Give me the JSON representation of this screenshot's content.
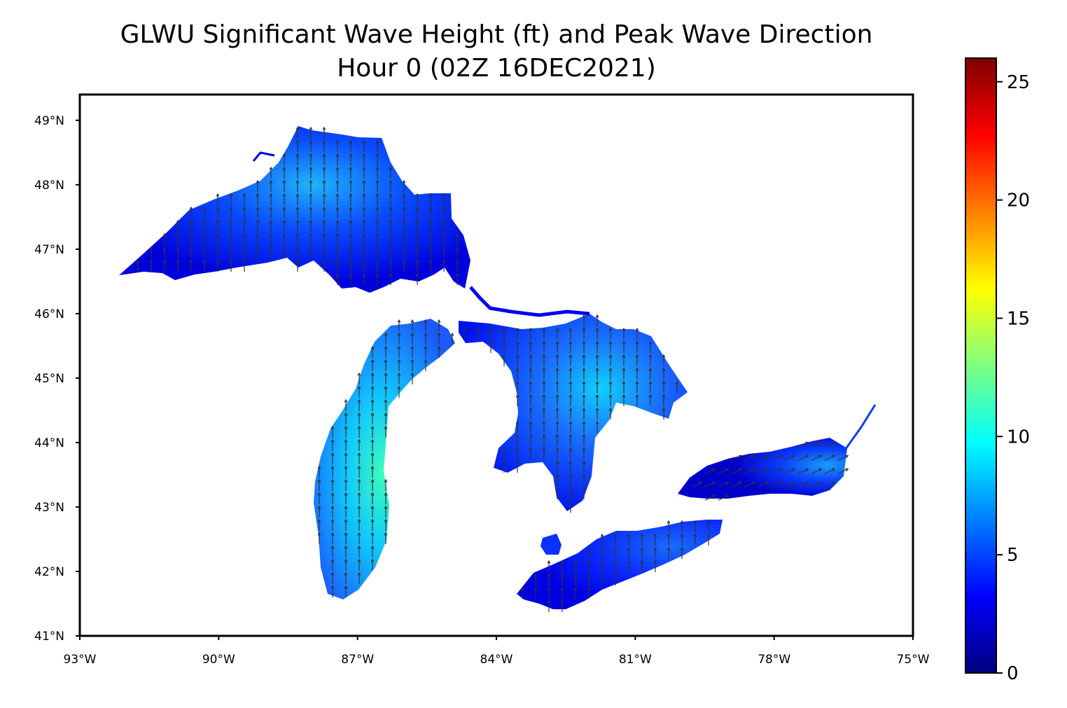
{
  "title": {
    "line1": "GLWU Significant Wave Height (ft) and Peak Wave Direction",
    "line2": "Hour 0 (02Z 16DEC2021)"
  },
  "chart_data": {
    "type": "heatmap",
    "projection": "PlateCarree",
    "xlim": [
      -93,
      -75
    ],
    "ylim": [
      41,
      49.4
    ],
    "x_ticks": [
      {
        "value": -93,
        "label": "93°W"
      },
      {
        "value": -90,
        "label": "90°W"
      },
      {
        "value": -87,
        "label": "87°W"
      },
      {
        "value": -84,
        "label": "84°W"
      },
      {
        "value": -81,
        "label": "81°W"
      },
      {
        "value": -78,
        "label": "78°W"
      },
      {
        "value": -75,
        "label": "75°W"
      }
    ],
    "y_ticks": [
      {
        "value": 41,
        "label": "41°N"
      },
      {
        "value": 42,
        "label": "42°N"
      },
      {
        "value": 43,
        "label": "43°N"
      },
      {
        "value": 44,
        "label": "44°N"
      },
      {
        "value": 45,
        "label": "45°N"
      },
      {
        "value": 46,
        "label": "46°N"
      },
      {
        "value": 47,
        "label": "47°N"
      },
      {
        "value": 48,
        "label": "48°N"
      },
      {
        "value": 49,
        "label": "49°N"
      }
    ],
    "colorbar": {
      "colormap": "jet",
      "min": 0,
      "max": 26,
      "ticks": [
        {
          "value": 0,
          "label": "0"
        },
        {
          "value": 5,
          "label": "5"
        },
        {
          "value": 10,
          "label": "10"
        },
        {
          "value": 15,
          "label": "15"
        },
        {
          "value": 20,
          "label": "20"
        },
        {
          "value": 25,
          "label": "25"
        }
      ]
    },
    "lakes": [
      {
        "name": "Superior",
        "max_wave_ft": 6.5,
        "typical_wave_ft": 3.5,
        "peak_direction": "from the south (arrows pointing north)"
      },
      {
        "name": "Michigan",
        "max_wave_ft": 11,
        "typical_wave_ft": 8,
        "peak_direction": "from the south (arrows pointing north)"
      },
      {
        "name": "Huron",
        "max_wave_ft": 8.5,
        "typical_wave_ft": 4.5,
        "peak_direction": "from the south (arrows pointing north)"
      },
      {
        "name": "Erie",
        "max_wave_ft": 4,
        "typical_wave_ft": 2.5,
        "peak_direction": "from the south (arrows pointing north)"
      },
      {
        "name": "Ontario",
        "max_wave_ft": 5.5,
        "typical_wave_ft": 2,
        "peak_direction": "from the west-southwest (arrows pointing east-northeast)"
      }
    ],
    "colors": {
      "jet_stops": [
        "#00007f",
        "#0000ff",
        "#007fff",
        "#00ffff",
        "#7fff7f",
        "#ffff00",
        "#ff7f00",
        "#ff0000",
        "#7f0000"
      ],
      "arrow": "#333333"
    }
  }
}
